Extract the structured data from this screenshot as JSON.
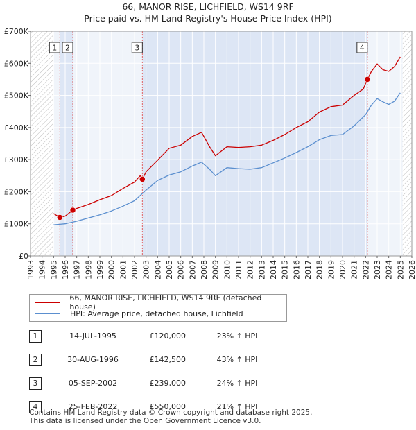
{
  "chart_data": {
    "type": "line",
    "title": "66, MANOR RISE, LICHFIELD, WS14 9RF",
    "subtitle": "Price paid vs. HM Land Registry's House Price Index (HPI)",
    "xlim": [
      1993,
      2026
    ],
    "ylim": [
      0,
      700000
    ],
    "x_ticks": [
      "1993",
      "1994",
      "1995",
      "1996",
      "1997",
      "1998",
      "1999",
      "2000",
      "2001",
      "2002",
      "2003",
      "2004",
      "2005",
      "2006",
      "2007",
      "2008",
      "2009",
      "2010",
      "2011",
      "2012",
      "2013",
      "2014",
      "2015",
      "2016",
      "2017",
      "2018",
      "2019",
      "2020",
      "2021",
      "2022",
      "2023",
      "2024",
      "2025",
      "2026"
    ],
    "y_ticks": [
      {
        "value": 0,
        "label": "£0"
      },
      {
        "value": 100000,
        "label": "£100K"
      },
      {
        "value": 200000,
        "label": "£200K"
      },
      {
        "value": 300000,
        "label": "£300K"
      },
      {
        "value": 400000,
        "label": "£400K"
      },
      {
        "value": 500000,
        "label": "£500K"
      },
      {
        "value": 600000,
        "label": "£600K"
      },
      {
        "value": 700000,
        "label": "£700K"
      }
    ],
    "hatched_ranges": [
      [
        1993,
        1995.0
      ],
      [
        2025.2,
        2026
      ]
    ],
    "shaded_ranges": [
      [
        1995.54,
        1996.66
      ],
      [
        2002.68,
        2022.15
      ]
    ],
    "series": [
      {
        "name": "66, MANOR RISE, LICHFIELD, WS14 9RF (detached house)",
        "color": "#cc0000",
        "points": [
          [
            1995.0,
            132000
          ],
          [
            1995.54,
            120000
          ],
          [
            1996.0,
            124000
          ],
          [
            1996.66,
            142500
          ],
          [
            1997.0,
            148000
          ],
          [
            1998.0,
            160000
          ],
          [
            1999.0,
            175000
          ],
          [
            2000.0,
            188000
          ],
          [
            2001.0,
            210000
          ],
          [
            2002.0,
            230000
          ],
          [
            2002.5,
            250000
          ],
          [
            2002.68,
            239000
          ],
          [
            2003.0,
            262000
          ],
          [
            2004.0,
            298000
          ],
          [
            2005.0,
            335000
          ],
          [
            2006.0,
            345000
          ],
          [
            2007.0,
            372000
          ],
          [
            2007.8,
            385000
          ],
          [
            2008.5,
            340000
          ],
          [
            2009.0,
            312000
          ],
          [
            2010.0,
            340000
          ],
          [
            2011.0,
            338000
          ],
          [
            2012.0,
            340000
          ],
          [
            2013.0,
            345000
          ],
          [
            2014.0,
            360000
          ],
          [
            2015.0,
            378000
          ],
          [
            2016.0,
            400000
          ],
          [
            2017.0,
            418000
          ],
          [
            2018.0,
            448000
          ],
          [
            2019.0,
            465000
          ],
          [
            2020.0,
            470000
          ],
          [
            2021.0,
            500000
          ],
          [
            2021.8,
            520000
          ],
          [
            2022.15,
            550000
          ],
          [
            2022.5,
            575000
          ],
          [
            2023.0,
            598000
          ],
          [
            2023.5,
            580000
          ],
          [
            2024.0,
            575000
          ],
          [
            2024.5,
            590000
          ],
          [
            2025.0,
            620000
          ]
        ]
      },
      {
        "name": "HPI: Average price, detached house, Lichfield",
        "color": "#5b8fcf",
        "points": [
          [
            1995.0,
            97000
          ],
          [
            1996.0,
            100000
          ],
          [
            1997.0,
            108000
          ],
          [
            1998.0,
            118000
          ],
          [
            1999.0,
            128000
          ],
          [
            2000.0,
            140000
          ],
          [
            2001.0,
            155000
          ],
          [
            2002.0,
            172000
          ],
          [
            2003.0,
            205000
          ],
          [
            2004.0,
            235000
          ],
          [
            2005.0,
            252000
          ],
          [
            2006.0,
            262000
          ],
          [
            2007.0,
            280000
          ],
          [
            2007.8,
            292000
          ],
          [
            2008.5,
            270000
          ],
          [
            2009.0,
            250000
          ],
          [
            2010.0,
            275000
          ],
          [
            2011.0,
            272000
          ],
          [
            2012.0,
            270000
          ],
          [
            2013.0,
            275000
          ],
          [
            2014.0,
            290000
          ],
          [
            2015.0,
            305000
          ],
          [
            2016.0,
            322000
          ],
          [
            2017.0,
            340000
          ],
          [
            2018.0,
            362000
          ],
          [
            2019.0,
            375000
          ],
          [
            2020.0,
            378000
          ],
          [
            2021.0,
            405000
          ],
          [
            2022.0,
            440000
          ],
          [
            2022.5,
            470000
          ],
          [
            2023.0,
            490000
          ],
          [
            2023.5,
            480000
          ],
          [
            2024.0,
            472000
          ],
          [
            2024.5,
            482000
          ],
          [
            2025.0,
            508000
          ]
        ]
      }
    ],
    "sales": [
      {
        "num": "1",
        "x": 1995.54,
        "price": 120000,
        "date": "14-JUL-1995",
        "price_label": "£120,000",
        "hpi": "23% ↑ HPI"
      },
      {
        "num": "2",
        "x": 1996.66,
        "price": 142500,
        "date": "30-AUG-1996",
        "price_label": "£142,500",
        "hpi": "43% ↑ HPI"
      },
      {
        "num": "3",
        "x": 2002.68,
        "price": 239000,
        "date": "05-SEP-2002",
        "price_label": "£239,000",
        "hpi": "24% ↑ HPI"
      },
      {
        "num": "4",
        "x": 2022.15,
        "price": 550000,
        "date": "25-FEB-2022",
        "price_label": "£550,000",
        "hpi": "21% ↑ HPI"
      }
    ]
  },
  "legend": {
    "items": [
      {
        "label": "66, MANOR RISE, LICHFIELD, WS14 9RF (detached house)",
        "color": "#cc0000"
      },
      {
        "label": "HPI: Average price, detached house, Lichfield",
        "color": "#5b8fcf"
      }
    ]
  },
  "footer": {
    "line1": "Contains HM Land Registry data © Crown copyright and database right 2025.",
    "line2": "This data is licensed under the Open Government Licence v3.0."
  }
}
